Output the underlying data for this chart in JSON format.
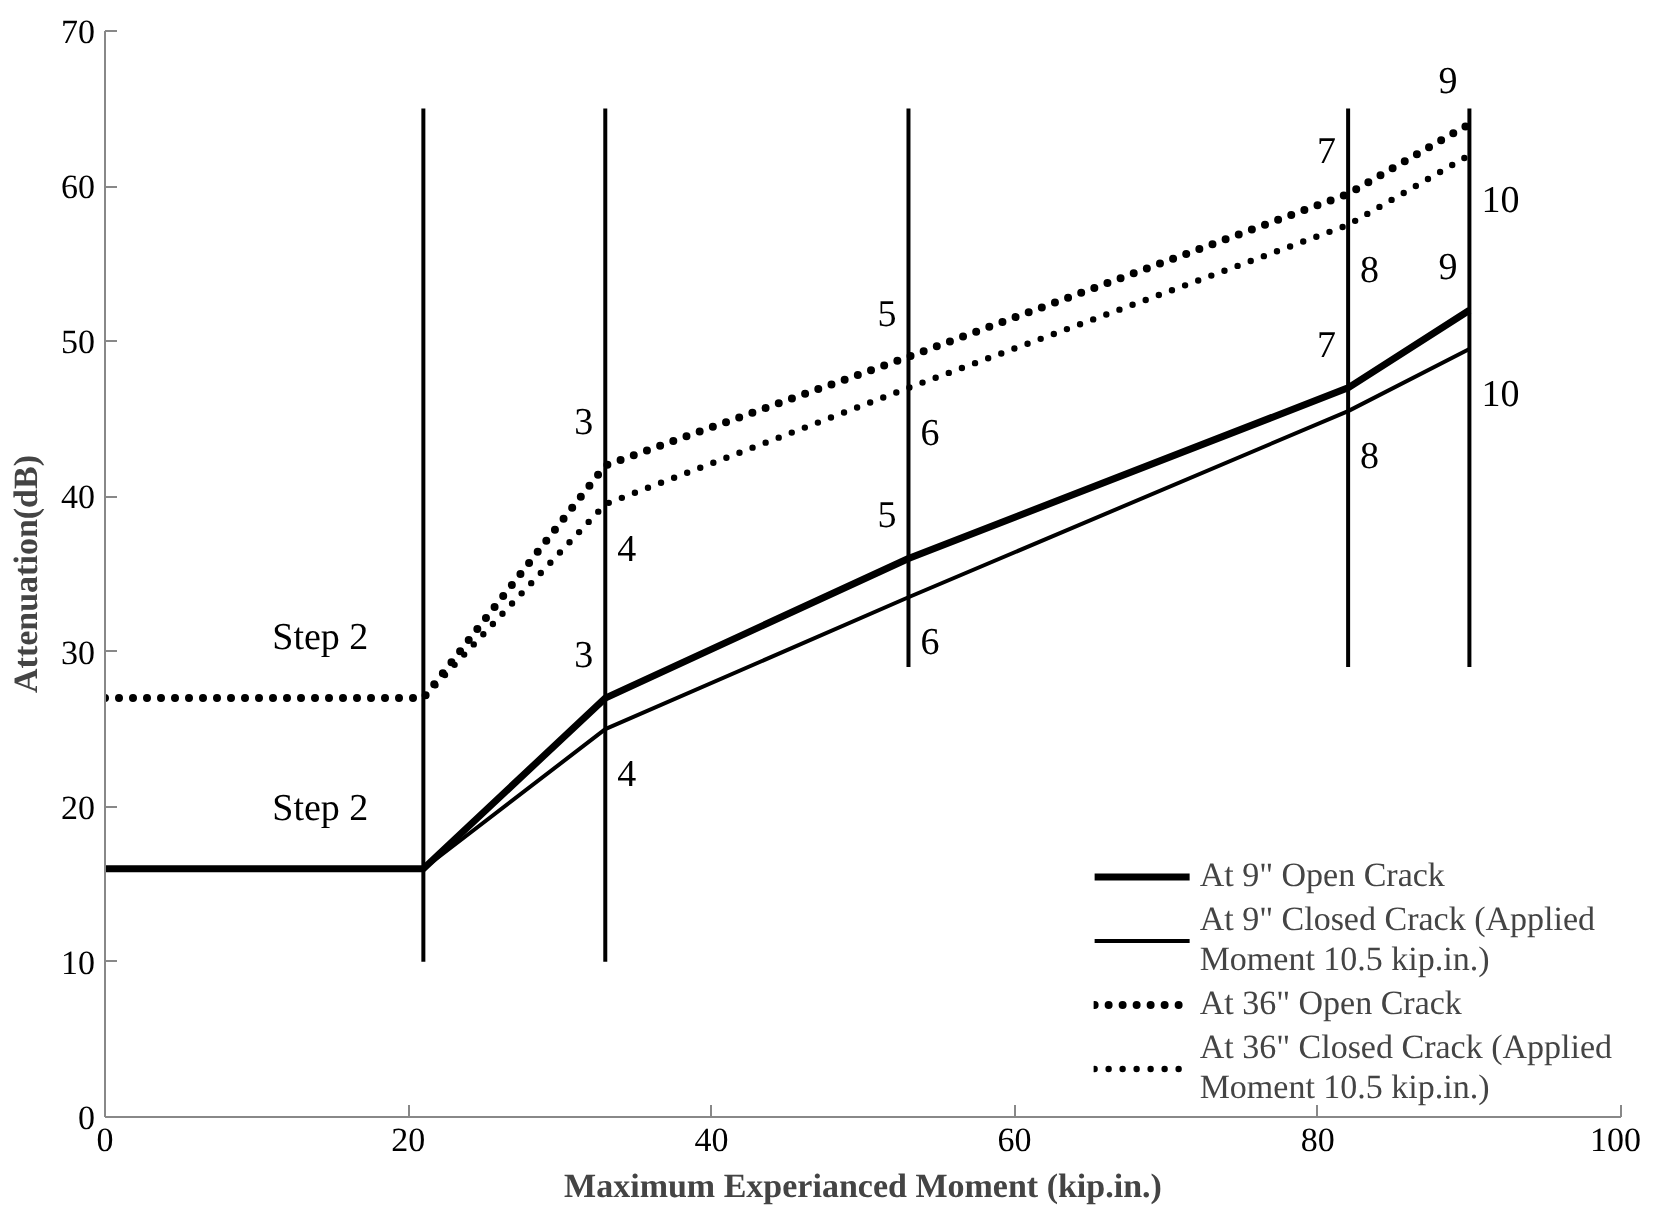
{
  "chart_data": {
    "type": "line",
    "xlabel": "Maximum Experianced Moment (kip.in.)",
    "ylabel": "Attenuation(dB)",
    "xlim": [
      0,
      100
    ],
    "xticks": [
      0,
      20,
      40,
      60,
      80,
      100
    ],
    "ylim": [
      0,
      70
    ],
    "yticks": [
      0,
      10,
      20,
      30,
      40,
      50,
      60,
      70
    ],
    "grid": false,
    "legend": "bottom right",
    "series": [
      {
        "name": "At 9\" Open Crack",
        "color": "#000000",
        "line_style": "solid",
        "x": [
          0,
          21,
          33,
          53,
          82,
          90
        ],
        "values": [
          16,
          16,
          27,
          36,
          47,
          52
        ]
      },
      {
        "name": "At 9\" Closed Crack (Applied Moment 10.5 kip.in.)",
        "color": "#000000",
        "line_style": "solid",
        "x": [
          0,
          21,
          33,
          53,
          82,
          90
        ],
        "values": [
          16,
          16,
          25,
          33.5,
          45.5,
          49.5
        ]
      },
      {
        "name": "At 36\" Open Crack",
        "color": "#000000",
        "line_style": "dotted",
        "x": [
          0,
          21,
          33,
          53,
          82,
          90
        ],
        "values": [
          27,
          27,
          42,
          49,
          59.5,
          64
        ]
      },
      {
        "name": "At 36\" Closed Crack (Applied Moment 10.5 kip.in.)",
        "color": "#000000",
        "line_style": "dotted",
        "x": [
          0,
          21,
          33,
          53,
          82,
          90
        ],
        "values": [
          27,
          27,
          39.5,
          47,
          57.5,
          62
        ]
      },
      {
        "color": "#000000",
        "line_style": "solid",
        "x": [
          21,
          21
        ],
        "values": [
          10,
          65
        ]
      },
      {
        "color": "#000000",
        "line_style": "solid",
        "x": [
          33,
          33
        ],
        "values": [
          10,
          65
        ]
      },
      {
        "color": "#000000",
        "line_style": "solid",
        "x": [
          53,
          53
        ],
        "values": [
          29,
          65
        ]
      },
      {
        "color": "#000000",
        "line_style": "solid",
        "x": [
          82,
          82
        ],
        "values": [
          29,
          65
        ]
      },
      {
        "color": "#000000",
        "line_style": "solid",
        "x": [
          90,
          90
        ],
        "values": [
          29,
          65
        ]
      }
    ],
    "annotations": [
      {
        "text": "Step   2",
        "x": 21,
        "y": 27
      },
      {
        "text": "Step   2",
        "x": 21,
        "y": 16
      },
      {
        "text": "3",
        "x": 33,
        "y": 42
      },
      {
        "text": "3",
        "x": 33,
        "y": 27
      },
      {
        "text": "4",
        "x": 33,
        "y": 39.5
      },
      {
        "text": "4",
        "x": 33,
        "y": 25
      },
      {
        "text": "5",
        "x": 53,
        "y": 49
      },
      {
        "text": "5",
        "x": 53,
        "y": 36
      },
      {
        "text": "6",
        "x": 53,
        "y": 47
      },
      {
        "text": "6",
        "x": 53,
        "y": 33.5
      },
      {
        "text": "7",
        "x": 82,
        "y": 59.5
      },
      {
        "text": "7",
        "x": 82,
        "y": 47
      },
      {
        "text": "8",
        "x": 82,
        "y": 57.5
      },
      {
        "text": "8",
        "x": 82,
        "y": 45.5
      },
      {
        "text": "9",
        "x": 90,
        "y": 64
      },
      {
        "text": "9",
        "x": 90,
        "y": 52
      },
      {
        "text": "10",
        "x": 90,
        "y": 62
      },
      {
        "text": "10",
        "x": 90,
        "y": 49.5
      }
    ]
  }
}
